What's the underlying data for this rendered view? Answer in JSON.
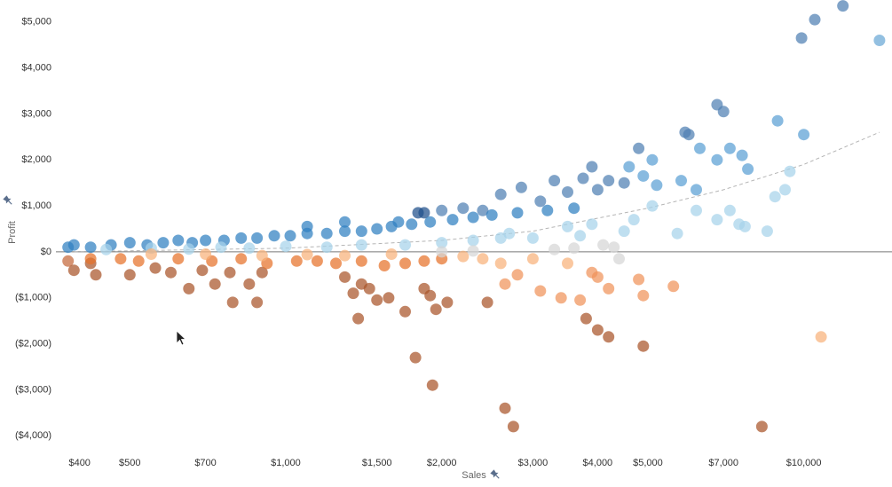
{
  "chart_data": {
    "type": "scatter",
    "title": "",
    "xlabel": "Sales",
    "ylabel": "Profit",
    "x_scale": "log",
    "xlim": [
      360,
      14800
    ],
    "ylim": [
      -4400,
      5400
    ],
    "x_ticks": [
      400,
      500,
      700,
      1000,
      1500,
      2000,
      3000,
      4000,
      5000,
      7000,
      10000
    ],
    "x_tick_labels": [
      "$400",
      "$500",
      "$700",
      "$1,000",
      "$1,500",
      "$2,000",
      "$3,000",
      "$4,000",
      "$5,000",
      "$7,000",
      "$10,000"
    ],
    "y_ticks": [
      5000,
      4000,
      3000,
      2000,
      1000,
      0,
      -1000,
      -2000,
      -3000,
      -4000
    ],
    "y_tick_labels": [
      "$5,000",
      "$4,000",
      "$3,000",
      "$2,000",
      "$1,000",
      "$0",
      "($1,000)",
      "($2,000)",
      "($3,000)",
      "($4,000)"
    ],
    "grid": false,
    "zero_line": true,
    "legend": "none",
    "color_encoding": "diverging blue-orange",
    "colors": {
      "positive_dark": "#1f5d99",
      "positive_mid": "#2f7fc1",
      "positive_light": "#a6d3ea",
      "neutral": "#d6d6d6",
      "negative_light": "#f8b27a",
      "negative_mid": "#e6722a",
      "negative_dark": "#a9542a",
      "trend_line": "#b5b5b5",
      "zero_line": "#777777"
    },
    "trend_line": {
      "type": "polynomial",
      "points": [
        [
          380,
          0
        ],
        [
          1000,
          80
        ],
        [
          2000,
          250
        ],
        [
          3000,
          450
        ],
        [
          5000,
          950
        ],
        [
          7000,
          1350
        ],
        [
          10000,
          1900
        ],
        [
          14000,
          2600
        ]
      ]
    },
    "points": [
      {
        "x": 9900,
        "y": 4650,
        "color": "#4f7fb3"
      },
      {
        "x": 10500,
        "y": 5050,
        "color": "#4f7fb3"
      },
      {
        "x": 11900,
        "y": 5350,
        "color": "#4f7fb3"
      },
      {
        "x": 14000,
        "y": 4600,
        "color": "#6aa8d6"
      },
      {
        "x": 6800,
        "y": 3200,
        "color": "#4f7fb3"
      },
      {
        "x": 7000,
        "y": 3050,
        "color": "#4f7fb3"
      },
      {
        "x": 8900,
        "y": 2850,
        "color": "#5a9fd4"
      },
      {
        "x": 10000,
        "y": 2550,
        "color": "#5a9fd4"
      },
      {
        "x": 5900,
        "y": 2600,
        "color": "#4f7fb3"
      },
      {
        "x": 6000,
        "y": 2550,
        "color": "#4f7fb3"
      },
      {
        "x": 6300,
        "y": 2250,
        "color": "#5a9fd4"
      },
      {
        "x": 6800,
        "y": 2000,
        "color": "#5a9fd4"
      },
      {
        "x": 7200,
        "y": 2250,
        "color": "#5a9fd4"
      },
      {
        "x": 7600,
        "y": 2100,
        "color": "#5a9fd4"
      },
      {
        "x": 7800,
        "y": 1800,
        "color": "#5a9fd4"
      },
      {
        "x": 4800,
        "y": 2250,
        "color": "#4f7fb3"
      },
      {
        "x": 5100,
        "y": 2000,
        "color": "#5a9fd4"
      },
      {
        "x": 4600,
        "y": 1850,
        "color": "#5a9fd4"
      },
      {
        "x": 4900,
        "y": 1650,
        "color": "#5a9fd4"
      },
      {
        "x": 5200,
        "y": 1450,
        "color": "#5a9fd4"
      },
      {
        "x": 5800,
        "y": 1550,
        "color": "#5a9fd4"
      },
      {
        "x": 6200,
        "y": 1350,
        "color": "#5a9fd4"
      },
      {
        "x": 3900,
        "y": 1850,
        "color": "#4f7fb3"
      },
      {
        "x": 3750,
        "y": 1600,
        "color": "#4f7fb3"
      },
      {
        "x": 3300,
        "y": 1550,
        "color": "#4f7fb3"
      },
      {
        "x": 2850,
        "y": 1400,
        "color": "#4f7fb3"
      },
      {
        "x": 2600,
        "y": 1250,
        "color": "#4f7fb3"
      },
      {
        "x": 4200,
        "y": 1550,
        "color": "#4f7fb3"
      },
      {
        "x": 4500,
        "y": 1500,
        "color": "#4f7fb3"
      },
      {
        "x": 4000,
        "y": 1350,
        "color": "#4f7fb3"
      },
      {
        "x": 3500,
        "y": 1300,
        "color": "#4f7fb3"
      },
      {
        "x": 3100,
        "y": 1100,
        "color": "#4f7fb3"
      },
      {
        "x": 9400,
        "y": 1750,
        "color": "#a6d3ea"
      },
      {
        "x": 9200,
        "y": 1350,
        "color": "#a6d3ea"
      },
      {
        "x": 8800,
        "y": 1200,
        "color": "#a6d3ea"
      },
      {
        "x": 7200,
        "y": 900,
        "color": "#a6d3ea"
      },
      {
        "x": 6200,
        "y": 900,
        "color": "#a6d3ea"
      },
      {
        "x": 6800,
        "y": 700,
        "color": "#a6d3ea"
      },
      {
        "x": 7500,
        "y": 600,
        "color": "#a6d3ea"
      },
      {
        "x": 7700,
        "y": 550,
        "color": "#a6d3ea"
      },
      {
        "x": 8500,
        "y": 450,
        "color": "#a6d3ea"
      },
      {
        "x": 5700,
        "y": 400,
        "color": "#a6d3ea"
      },
      {
        "x": 5100,
        "y": 1000,
        "color": "#a6d3ea"
      },
      {
        "x": 4700,
        "y": 700,
        "color": "#a6d3ea"
      },
      {
        "x": 4500,
        "y": 450,
        "color": "#a6d3ea"
      },
      {
        "x": 4100,
        "y": 150,
        "color": "#d6d6d6"
      },
      {
        "x": 4300,
        "y": 100,
        "color": "#d6d6d6"
      },
      {
        "x": 4400,
        "y": -150,
        "color": "#d6d6d6"
      },
      {
        "x": 3500,
        "y": 550,
        "color": "#a6d3ea"
      },
      {
        "x": 3700,
        "y": 350,
        "color": "#a6d3ea"
      },
      {
        "x": 3900,
        "y": 600,
        "color": "#a6d3ea"
      },
      {
        "x": 3000,
        "y": 300,
        "color": "#a6d3ea"
      },
      {
        "x": 2700,
        "y": 400,
        "color": "#a6d3ea"
      },
      {
        "x": 1800,
        "y": 850,
        "color": "#1f4f8a"
      },
      {
        "x": 1850,
        "y": 850,
        "color": "#1f4f8a"
      },
      {
        "x": 2000,
        "y": 900,
        "color": "#4f7fb3"
      },
      {
        "x": 2200,
        "y": 950,
        "color": "#4f7fb3"
      },
      {
        "x": 2400,
        "y": 900,
        "color": "#4f7fb3"
      },
      {
        "x": 1650,
        "y": 650,
        "color": "#2f7fc1"
      },
      {
        "x": 1300,
        "y": 650,
        "color": "#2f7fc1"
      },
      {
        "x": 1100,
        "y": 550,
        "color": "#2f7fc1"
      },
      {
        "x": 380,
        "y": 100,
        "color": "#2f7fc1"
      },
      {
        "x": 390,
        "y": 150,
        "color": "#2f7fc1"
      },
      {
        "x": 420,
        "y": 100,
        "color": "#2f7fc1"
      },
      {
        "x": 460,
        "y": 150,
        "color": "#2f7fc1"
      },
      {
        "x": 500,
        "y": 200,
        "color": "#2f7fc1"
      },
      {
        "x": 540,
        "y": 150,
        "color": "#2f7fc1"
      },
      {
        "x": 580,
        "y": 200,
        "color": "#2f7fc1"
      },
      {
        "x": 620,
        "y": 250,
        "color": "#2f7fc1"
      },
      {
        "x": 660,
        "y": 200,
        "color": "#2f7fc1"
      },
      {
        "x": 700,
        "y": 250,
        "color": "#2f7fc1"
      },
      {
        "x": 760,
        "y": 250,
        "color": "#2f7fc1"
      },
      {
        "x": 820,
        "y": 300,
        "color": "#2f7fc1"
      },
      {
        "x": 880,
        "y": 300,
        "color": "#2f7fc1"
      },
      {
        "x": 950,
        "y": 350,
        "color": "#2f7fc1"
      },
      {
        "x": 1020,
        "y": 350,
        "color": "#2f7fc1"
      },
      {
        "x": 1100,
        "y": 400,
        "color": "#2f7fc1"
      },
      {
        "x": 1200,
        "y": 400,
        "color": "#2f7fc1"
      },
      {
        "x": 1300,
        "y": 450,
        "color": "#2f7fc1"
      },
      {
        "x": 1400,
        "y": 450,
        "color": "#2f7fc1"
      },
      {
        "x": 1500,
        "y": 500,
        "color": "#2f7fc1"
      },
      {
        "x": 1600,
        "y": 550,
        "color": "#2f7fc1"
      },
      {
        "x": 1750,
        "y": 600,
        "color": "#2f7fc1"
      },
      {
        "x": 1900,
        "y": 650,
        "color": "#2f7fc1"
      },
      {
        "x": 2100,
        "y": 700,
        "color": "#2f7fc1"
      },
      {
        "x": 2300,
        "y": 750,
        "color": "#2f7fc1"
      },
      {
        "x": 2500,
        "y": 800,
        "color": "#2f7fc1"
      },
      {
        "x": 2800,
        "y": 850,
        "color": "#2f7fc1"
      },
      {
        "x": 3200,
        "y": 900,
        "color": "#2f7fc1"
      },
      {
        "x": 3600,
        "y": 950,
        "color": "#2f7fc1"
      },
      {
        "x": 450,
        "y": 50,
        "color": "#a6d3ea"
      },
      {
        "x": 550,
        "y": 80,
        "color": "#a6d3ea"
      },
      {
        "x": 650,
        "y": 60,
        "color": "#a6d3ea"
      },
      {
        "x": 750,
        "y": 100,
        "color": "#a6d3ea"
      },
      {
        "x": 850,
        "y": 80,
        "color": "#a6d3ea"
      },
      {
        "x": 1000,
        "y": 120,
        "color": "#a6d3ea"
      },
      {
        "x": 1200,
        "y": 100,
        "color": "#a6d3ea"
      },
      {
        "x": 1400,
        "y": 150,
        "color": "#a6d3ea"
      },
      {
        "x": 1700,
        "y": 150,
        "color": "#a6d3ea"
      },
      {
        "x": 2000,
        "y": 200,
        "color": "#a6d3ea"
      },
      {
        "x": 2300,
        "y": 250,
        "color": "#a6d3ea"
      },
      {
        "x": 2600,
        "y": 300,
        "color": "#a6d3ea"
      },
      {
        "x": 380,
        "y": -200,
        "color": "#c5683a"
      },
      {
        "x": 390,
        "y": -400,
        "color": "#a9542a"
      },
      {
        "x": 420,
        "y": -250,
        "color": "#a9542a"
      },
      {
        "x": 430,
        "y": -500,
        "color": "#a9542a"
      },
      {
        "x": 500,
        "y": -500,
        "color": "#a9542a"
      },
      {
        "x": 480,
        "y": -150,
        "color": "#e6722a"
      },
      {
        "x": 560,
        "y": -350,
        "color": "#a9542a"
      },
      {
        "x": 600,
        "y": -450,
        "color": "#a9542a"
      },
      {
        "x": 650,
        "y": -800,
        "color": "#a9542a"
      },
      {
        "x": 690,
        "y": -400,
        "color": "#a9542a"
      },
      {
        "x": 730,
        "y": -700,
        "color": "#a9542a"
      },
      {
        "x": 780,
        "y": -450,
        "color": "#a9542a"
      },
      {
        "x": 850,
        "y": -700,
        "color": "#a9542a"
      },
      {
        "x": 900,
        "y": -450,
        "color": "#a9542a"
      },
      {
        "x": 790,
        "y": -1100,
        "color": "#a9542a"
      },
      {
        "x": 880,
        "y": -1100,
        "color": "#a9542a"
      },
      {
        "x": 1300,
        "y": -550,
        "color": "#a9542a"
      },
      {
        "x": 1350,
        "y": -900,
        "color": "#a9542a"
      },
      {
        "x": 1400,
        "y": -700,
        "color": "#a9542a"
      },
      {
        "x": 1450,
        "y": -800,
        "color": "#a9542a"
      },
      {
        "x": 1500,
        "y": -1050,
        "color": "#a9542a"
      },
      {
        "x": 1380,
        "y": -1450,
        "color": "#a9542a"
      },
      {
        "x": 1580,
        "y": -1000,
        "color": "#a9542a"
      },
      {
        "x": 1700,
        "y": -1300,
        "color": "#a9542a"
      },
      {
        "x": 1850,
        "y": -800,
        "color": "#a9542a"
      },
      {
        "x": 1900,
        "y": -950,
        "color": "#a9542a"
      },
      {
        "x": 1950,
        "y": -1250,
        "color": "#a9542a"
      },
      {
        "x": 2050,
        "y": -1100,
        "color": "#a9542a"
      },
      {
        "x": 2450,
        "y": -1100,
        "color": "#a9542a"
      },
      {
        "x": 1780,
        "y": -2300,
        "color": "#a9542a"
      },
      {
        "x": 1920,
        "y": -2900,
        "color": "#a9542a"
      },
      {
        "x": 2650,
        "y": -3400,
        "color": "#a9542a"
      },
      {
        "x": 2750,
        "y": -3800,
        "color": "#a9542a"
      },
      {
        "x": 8300,
        "y": -3800,
        "color": "#a9542a"
      },
      {
        "x": 3800,
        "y": -1450,
        "color": "#a9542a"
      },
      {
        "x": 4000,
        "y": -1700,
        "color": "#a9542a"
      },
      {
        "x": 4200,
        "y": -1850,
        "color": "#a9542a"
      },
      {
        "x": 4900,
        "y": -2050,
        "color": "#a9542a"
      },
      {
        "x": 10800,
        "y": -1850,
        "color": "#f8b27a"
      },
      {
        "x": 2650,
        "y": -700,
        "color": "#f0935a"
      },
      {
        "x": 2800,
        "y": -500,
        "color": "#f0935a"
      },
      {
        "x": 3100,
        "y": -850,
        "color": "#f0935a"
      },
      {
        "x": 3400,
        "y": -1000,
        "color": "#f0935a"
      },
      {
        "x": 3700,
        "y": -1050,
        "color": "#f0935a"
      },
      {
        "x": 3900,
        "y": -450,
        "color": "#f0935a"
      },
      {
        "x": 4000,
        "y": -550,
        "color": "#f0935a"
      },
      {
        "x": 4200,
        "y": -800,
        "color": "#f0935a"
      },
      {
        "x": 4800,
        "y": -600,
        "color": "#f0935a"
      },
      {
        "x": 4900,
        "y": -950,
        "color": "#f0935a"
      },
      {
        "x": 5600,
        "y": -750,
        "color": "#f0935a"
      },
      {
        "x": 3500,
        "y": -250,
        "color": "#f8b27a"
      },
      {
        "x": 2600,
        "y": -250,
        "color": "#f8b27a"
      },
      {
        "x": 3000,
        "y": -150,
        "color": "#f8b27a"
      },
      {
        "x": 2400,
        "y": -150,
        "color": "#f8b27a"
      },
      {
        "x": 2200,
        "y": -100,
        "color": "#f8b27a"
      },
      {
        "x": 420,
        "y": -150,
        "color": "#e6722a"
      },
      {
        "x": 520,
        "y": -200,
        "color": "#e6722a"
      },
      {
        "x": 620,
        "y": -150,
        "color": "#e6722a"
      },
      {
        "x": 720,
        "y": -200,
        "color": "#e6722a"
      },
      {
        "x": 820,
        "y": -150,
        "color": "#e6722a"
      },
      {
        "x": 920,
        "y": -250,
        "color": "#e6722a"
      },
      {
        "x": 1050,
        "y": -200,
        "color": "#e6722a"
      },
      {
        "x": 1150,
        "y": -200,
        "color": "#e6722a"
      },
      {
        "x": 1250,
        "y": -250,
        "color": "#e6722a"
      },
      {
        "x": 1400,
        "y": -200,
        "color": "#e6722a"
      },
      {
        "x": 1550,
        "y": -300,
        "color": "#e6722a"
      },
      {
        "x": 1700,
        "y": -250,
        "color": "#e6722a"
      },
      {
        "x": 1850,
        "y": -200,
        "color": "#e6722a"
      },
      {
        "x": 2000,
        "y": -150,
        "color": "#e6722a"
      },
      {
        "x": 550,
        "y": -50,
        "color": "#f8b27a"
      },
      {
        "x": 700,
        "y": -50,
        "color": "#f8b27a"
      },
      {
        "x": 900,
        "y": -80,
        "color": "#f8b27a"
      },
      {
        "x": 1100,
        "y": -60,
        "color": "#f8b27a"
      },
      {
        "x": 1300,
        "y": -80,
        "color": "#f8b27a"
      },
      {
        "x": 1600,
        "y": -50,
        "color": "#f8b27a"
      },
      {
        "x": 2000,
        "y": 0,
        "color": "#d6d6d6"
      },
      {
        "x": 2300,
        "y": 20,
        "color": "#d6d6d6"
      },
      {
        "x": 3300,
        "y": 50,
        "color": "#d6d6d6"
      },
      {
        "x": 3600,
        "y": 80,
        "color": "#d6d6d6"
      }
    ]
  }
}
